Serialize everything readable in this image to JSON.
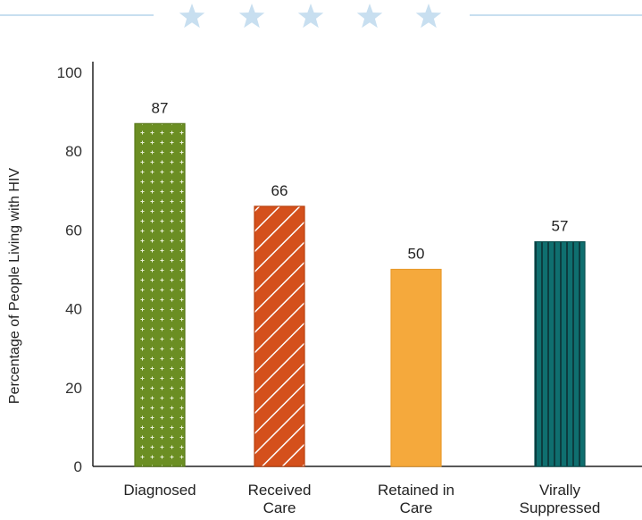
{
  "colors": {
    "header_accent": "#c8dff0",
    "axis": "#222222"
  },
  "header": {
    "star_icons": [
      "star-icon",
      "star-icon",
      "star-icon",
      "star-icon",
      "star-icon"
    ]
  },
  "chart_data": {
    "type": "bar",
    "title": "",
    "xlabel": "",
    "ylabel": "Percentage of People Living with HIV",
    "ylim": [
      0,
      100
    ],
    "yticks": [
      "0",
      "20",
      "40",
      "60",
      "80",
      "100"
    ],
    "categories": [
      [
        "Diagnosed"
      ],
      [
        "Received",
        "Care"
      ],
      [
        "Retained in",
        "Care"
      ],
      [
        "Virally",
        "Suppressed"
      ]
    ],
    "values": [
      87,
      66,
      50,
      57
    ],
    "value_labels": [
      "87",
      "66",
      "50",
      "57"
    ],
    "bars": [
      {
        "fill": "#6b8e23",
        "pattern": "dots"
      },
      {
        "fill": "#d4501c",
        "pattern": "diagonal-stripes"
      },
      {
        "fill": "#f5a93c",
        "pattern": "solid"
      },
      {
        "fill": "#0f6f6f",
        "pattern": "vertical-stripes"
      }
    ],
    "grid": false,
    "legend": "none"
  }
}
